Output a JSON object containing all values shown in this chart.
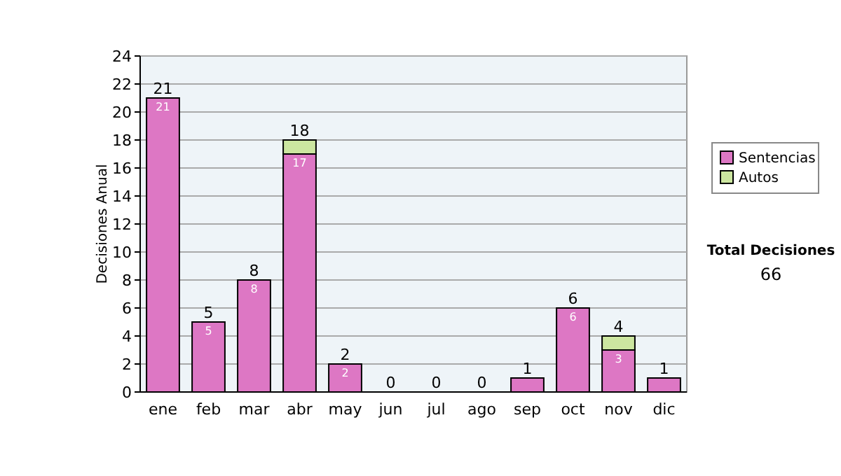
{
  "chart_data": {
    "type": "bar",
    "ylabel": "Decisiones Anual",
    "categories": [
      "ene",
      "feb",
      "mar",
      "abr",
      "may",
      "jun",
      "jul",
      "ago",
      "sep",
      "oct",
      "nov",
      "dic"
    ],
    "series": [
      {
        "name": "Sentencias",
        "color": "#dd77c4",
        "values": [
          21,
          5,
          8,
          17,
          2,
          0,
          0,
          0,
          1,
          6,
          3,
          1
        ],
        "value_labels": [
          "21",
          "5",
          "8",
          "17",
          "2",
          null,
          null,
          null,
          null,
          "6",
          "3",
          null
        ]
      },
      {
        "name": "Autos",
        "color": "#cce6a0",
        "values": [
          0,
          0,
          0,
          1,
          0,
          0,
          0,
          0,
          0,
          0,
          1,
          0
        ]
      }
    ],
    "stacked": true,
    "totals": [
      "21",
      "5",
      "8",
      "18",
      "2",
      "0",
      "0",
      "0",
      "1",
      "6",
      "4",
      "1"
    ],
    "ylim": [
      0,
      24
    ],
    "yticks": [
      0,
      2,
      4,
      6,
      8,
      10,
      12,
      14,
      16,
      18,
      20,
      22,
      24
    ],
    "grid": "y",
    "legend": "right",
    "annotations": [
      "Total Decisiones",
      "66"
    ]
  }
}
